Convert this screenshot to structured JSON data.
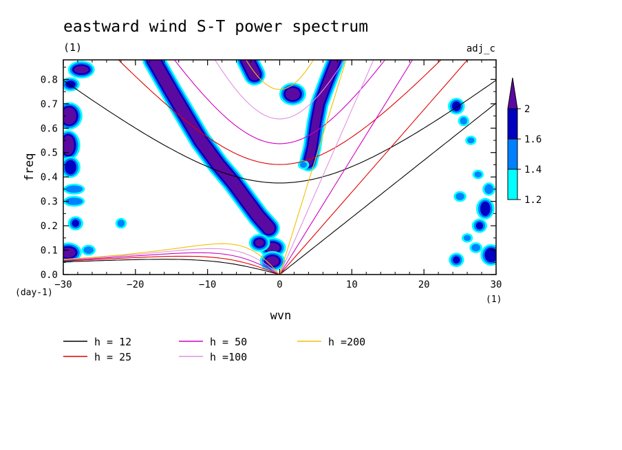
{
  "chart_data": {
    "type": "heatmap",
    "title": "eastward wind S-T power spectrum",
    "subtitle": "(1)",
    "run_label": "adj_c",
    "xlabel": "wvn",
    "ylabel": "freq",
    "x_unit_label": "(1)",
    "y_unit_label": "(day-1)",
    "xlim": [
      -30,
      30
    ],
    "ylim": [
      0,
      0.88
    ],
    "x_ticks": [
      -30,
      -20,
      -10,
      0,
      10,
      20,
      30
    ],
    "x_tick_labels": [
      "−30",
      "−20",
      "−10",
      "0",
      "10",
      "20",
      "30"
    ],
    "y_ticks": [
      0.0,
      0.1,
      0.2,
      0.3,
      0.4,
      0.5,
      0.6,
      0.7,
      0.8
    ],
    "y_tick_labels": [
      "0.0",
      "0.1",
      "0.2",
      "0.3",
      "0.4",
      "0.5",
      "0.6",
      "0.7",
      "0.8"
    ],
    "colorbar": {
      "levels": [
        1.2,
        1.4,
        1.6,
        2
      ],
      "labels": [
        "1.2",
        "1.4",
        "1.6",
        "2"
      ],
      "colors": [
        "#00ffff",
        "#0080ff",
        "#0000c0",
        "#5a0aa0"
      ]
    },
    "dispersion_curves": [
      {
        "name": "h = 12",
        "h": 12,
        "color": "#000000"
      },
      {
        "name": "h = 25",
        "h": 25,
        "color": "#e00000"
      },
      {
        "name": "h = 50",
        "h": 50,
        "color": "#d000c0"
      },
      {
        "name": "h =100",
        "h": 100,
        "color": "#e090e0"
      },
      {
        "name": "h =200",
        "h": 200,
        "color": "#f0c000"
      }
    ],
    "power_regions": [
      {
        "kind": "ribbon",
        "level": 3,
        "points": [
          [
            -17.5,
            0.88
          ],
          [
            -15,
            0.75
          ],
          [
            -13,
            0.65
          ],
          [
            -11,
            0.55
          ],
          [
            -8.5,
            0.45
          ],
          [
            -6.5,
            0.38
          ],
          [
            -4.5,
            0.3
          ],
          [
            -3,
            0.24
          ],
          [
            -1.5,
            0.19
          ]
        ],
        "width": 1.6
      },
      {
        "kind": "ribbon",
        "level": 3,
        "points": [
          [
            7.8,
            0.88
          ],
          [
            6.5,
            0.78
          ],
          [
            5.5,
            0.7
          ],
          [
            5,
            0.62
          ],
          [
            4.5,
            0.52
          ],
          [
            4,
            0.46
          ]
        ],
        "width": 1.1
      },
      {
        "kind": "ribbon",
        "level": 3,
        "points": [
          [
            -4.5,
            0.88
          ],
          [
            -3.5,
            0.82
          ]
        ],
        "width": 1.6
      },
      {
        "kind": "blob",
        "level": 3,
        "cx": 1.8,
        "cy": 0.74,
        "rx": 1.0,
        "ry": 0.025
      },
      {
        "kind": "blob",
        "level": 3,
        "cx": -1.0,
        "cy": 0.11,
        "rx": 1.0,
        "ry": 0.02
      },
      {
        "kind": "blob",
        "level": 3,
        "cx": -1.0,
        "cy": 0.055,
        "rx": 0.9,
        "ry": 0.02
      },
      {
        "kind": "blob",
        "level": 3,
        "cx": -2.8,
        "cy": 0.13,
        "rx": 0.6,
        "ry": 0.015
      },
      {
        "kind": "blob",
        "level": 3,
        "cx": -29.2,
        "cy": 0.65,
        "rx": 1.0,
        "ry": 0.035
      },
      {
        "kind": "blob",
        "level": 3,
        "cx": -29.3,
        "cy": 0.53,
        "rx": 0.8,
        "ry": 0.04
      },
      {
        "kind": "blob",
        "level": 3,
        "cx": -29.3,
        "cy": 0.09,
        "rx": 1.0,
        "ry": 0.02
      },
      {
        "kind": "blob",
        "level": 3,
        "cx": -27.5,
        "cy": 0.84,
        "rx": 1.0,
        "ry": 0.015
      },
      {
        "kind": "blob",
        "level": 2,
        "cx": -29.0,
        "cy": 0.44,
        "rx": 0.8,
        "ry": 0.03
      },
      {
        "kind": "blob",
        "level": 2,
        "cx": -29.0,
        "cy": 0.78,
        "rx": 0.7,
        "ry": 0.015
      },
      {
        "kind": "blob",
        "level": 2,
        "cx": -28.3,
        "cy": 0.21,
        "rx": 0.5,
        "ry": 0.015
      },
      {
        "kind": "blob",
        "level": 2,
        "cx": 24.5,
        "cy": 0.69,
        "rx": 0.6,
        "ry": 0.02
      },
      {
        "kind": "blob",
        "level": 2,
        "cx": 28.5,
        "cy": 0.27,
        "rx": 0.7,
        "ry": 0.03
      },
      {
        "kind": "blob",
        "level": 2,
        "cx": 29.3,
        "cy": 0.08,
        "rx": 0.9,
        "ry": 0.03
      },
      {
        "kind": "blob",
        "level": 2,
        "cx": 24.5,
        "cy": 0.06,
        "rx": 0.5,
        "ry": 0.015
      },
      {
        "kind": "blob",
        "level": 2,
        "cx": 27.7,
        "cy": 0.2,
        "rx": 0.5,
        "ry": 0.015
      },
      {
        "kind": "blob",
        "level": 1,
        "cx": -28.5,
        "cy": 0.3,
        "rx": 1.2,
        "ry": 0.015
      },
      {
        "kind": "blob",
        "level": 1,
        "cx": -28.5,
        "cy": 0.35,
        "rx": 1.2,
        "ry": 0.015
      },
      {
        "kind": "blob",
        "level": 1,
        "cx": -26.5,
        "cy": 0.1,
        "rx": 0.7,
        "ry": 0.015
      },
      {
        "kind": "blob",
        "level": 1,
        "cx": -22.0,
        "cy": 0.21,
        "rx": 0.5,
        "ry": 0.015
      },
      {
        "kind": "blob",
        "level": 1,
        "cx": 3.3,
        "cy": 0.45,
        "rx": 0.5,
        "ry": 0.012
      },
      {
        "kind": "blob",
        "level": 1,
        "cx": 25.5,
        "cy": 0.63,
        "rx": 0.5,
        "ry": 0.015
      },
      {
        "kind": "blob",
        "level": 1,
        "cx": 26.5,
        "cy": 0.55,
        "rx": 0.5,
        "ry": 0.012
      },
      {
        "kind": "blob",
        "level": 1,
        "cx": 27.5,
        "cy": 0.41,
        "rx": 0.5,
        "ry": 0.012
      },
      {
        "kind": "blob",
        "level": 1,
        "cx": 25.0,
        "cy": 0.32,
        "rx": 0.6,
        "ry": 0.015
      },
      {
        "kind": "blob",
        "level": 1,
        "cx": 27.2,
        "cy": 0.11,
        "rx": 0.6,
        "ry": 0.015
      },
      {
        "kind": "blob",
        "level": 1,
        "cx": 29.0,
        "cy": 0.35,
        "rx": 0.6,
        "ry": 0.02
      },
      {
        "kind": "blob",
        "level": 1,
        "cx": 26.0,
        "cy": 0.15,
        "rx": 0.5,
        "ry": 0.012
      }
    ]
  }
}
